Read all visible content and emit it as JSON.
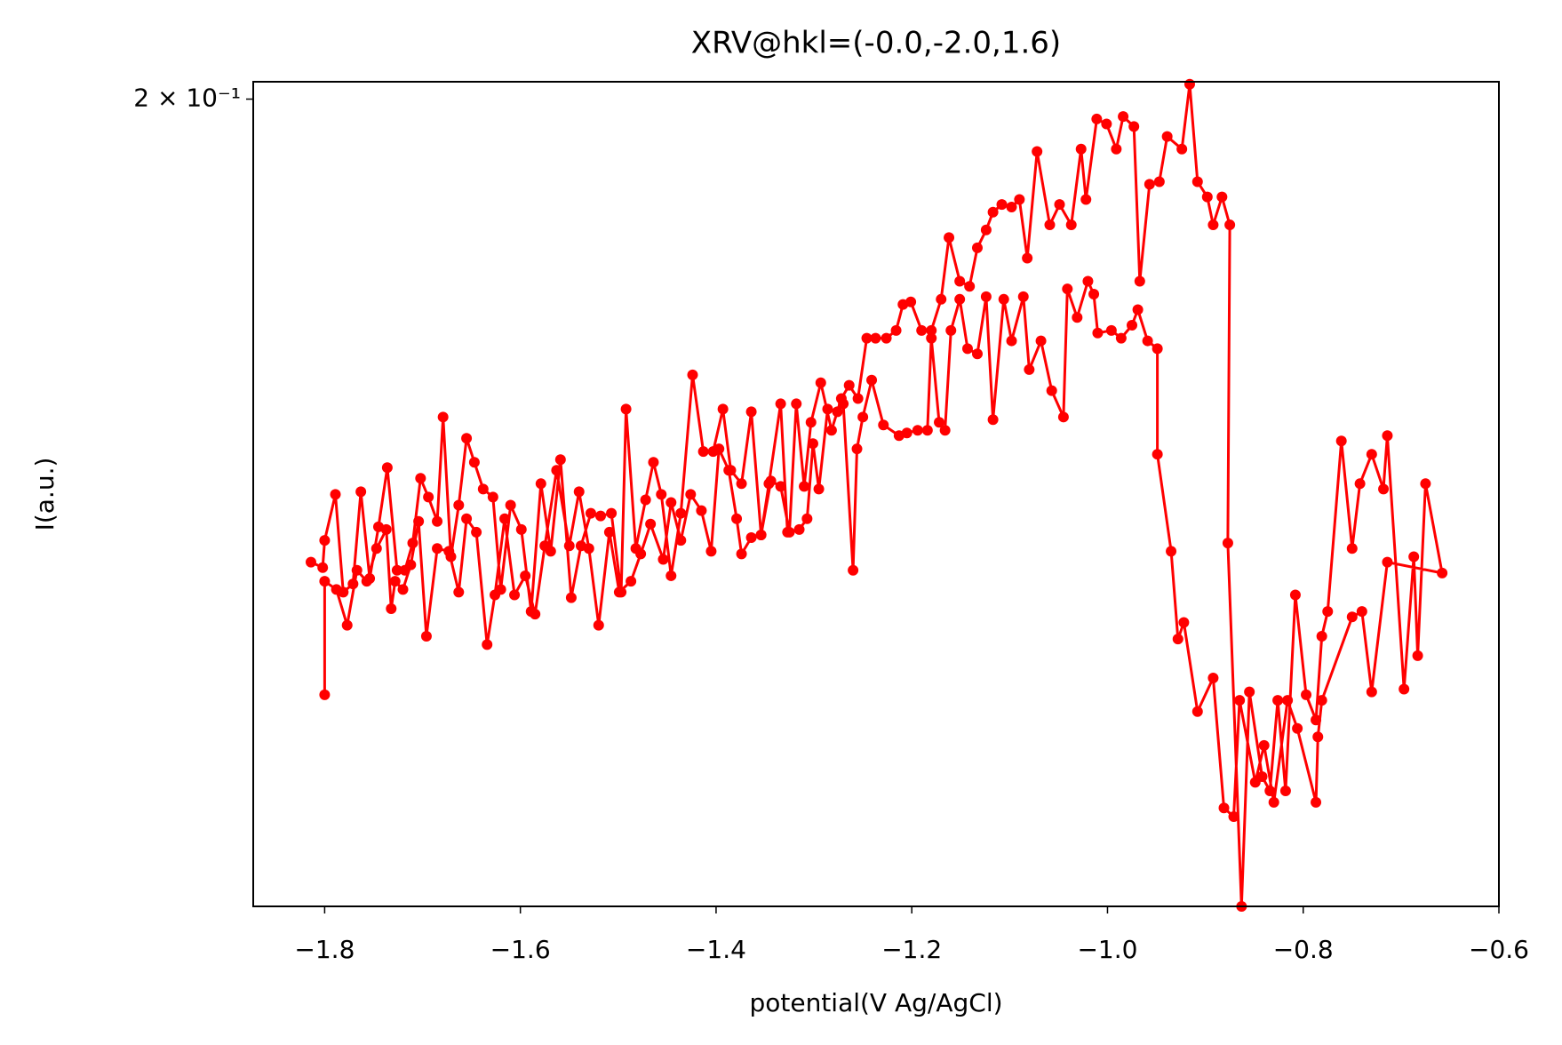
{
  "chart_data": {
    "type": "line",
    "title": "XRV@hkl=(-0.0,-2.0,1.6)",
    "x_label": "potential(V Ag/AgCl)",
    "y_label": "I(a.u.)",
    "x": [
      -1.814,
      -1.802,
      -1.8,
      -1.789,
      -1.781,
      -1.771,
      -1.763,
      -1.754,
      -1.745,
      -1.736,
      -1.726,
      -1.718,
      -1.71,
      -1.702,
      -1.694,
      -1.685,
      -1.679,
      -1.671,
      -1.663,
      -1.655,
      -1.647,
      -1.638,
      -1.628,
      -1.62,
      -1.61,
      -1.599,
      -1.589,
      -1.579,
      -1.569,
      -1.559,
      -1.548,
      -1.538,
      -1.528,
      -1.518,
      -1.507,
      -1.497,
      -1.492,
      -1.482,
      -1.472,
      -1.464,
      -1.456,
      -1.446,
      -1.436,
      -1.424,
      -1.413,
      -1.403,
      -1.393,
      -1.385,
      -1.374,
      -1.364,
      -1.354,
      -1.344,
      -1.334,
      -1.325,
      -1.318,
      -1.31,
      -1.303,
      -1.293,
      -1.282,
      -1.272,
      -1.264,
      -1.255,
      -1.246,
      -1.237,
      -1.226,
      -1.216,
      -1.209,
      -1.201,
      -1.19,
      -1.18,
      -1.17,
      -1.162,
      -1.151,
      -1.141,
      -1.133,
      -1.124,
      -1.117,
      -1.108,
      -1.098,
      -1.09,
      -1.082,
      -1.072,
      -1.059,
      -1.049,
      -1.037,
      -1.027,
      -1.022,
      -1.011,
      -1.001,
      -0.991,
      -0.984,
      -0.973,
      -0.967,
      -0.957,
      -0.947,
      -0.939,
      -0.924,
      -0.916,
      -0.908,
      -0.898,
      -0.892,
      -0.883,
      -0.875,
      -0.877,
      -0.863,
      -0.855,
      -0.842,
      -0.834,
      -0.826,
      -0.818,
      -0.808,
      -0.797,
      -0.787,
      -0.781,
      -0.775,
      -0.761,
      -0.75,
      -0.742,
      -0.73,
      -0.718,
      -0.714,
      -0.697,
      -0.687,
      -0.683,
      -0.675,
      -0.658,
      -0.714,
      -0.73,
      -0.74,
      -0.75,
      -0.781,
      -0.785,
      -0.787,
      -0.806,
      -0.816,
      -0.83,
      -0.84,
      -0.849,
      -0.865,
      -0.871,
      -0.881,
      -0.892,
      -0.908,
      -0.922,
      -0.928,
      -0.935,
      -0.949,
      -0.949,
      -0.959,
      -0.969,
      -0.975,
      -0.986,
      -0.996,
      -1.01,
      -1.014,
      -1.02,
      -1.031,
      -1.041,
      -1.045,
      -1.057,
      -1.068,
      -1.08,
      -1.086,
      -1.098,
      -1.106,
      -1.117,
      -1.124,
      -1.133,
      -1.143,
      -1.151,
      -1.16,
      -1.166,
      -1.172,
      -1.18,
      -1.184,
      -1.194,
      -1.205,
      -1.213,
      -1.229,
      -1.241,
      -1.25,
      -1.256,
      -1.26,
      -1.27,
      -1.276,
      -1.286,
      -1.295,
      -1.301,
      -1.307,
      -1.315,
      -1.327,
      -1.334,
      -1.346,
      -1.354,
      -1.364,
      -1.374,
      -1.379,
      -1.387,
      -1.397,
      -1.405,
      -1.415,
      -1.426,
      -1.436,
      -1.446,
      -1.454,
      -1.467,
      -1.477,
      -1.487,
      -1.499,
      -1.509,
      -1.52,
      -1.53,
      -1.54,
      -1.55,
      -1.563,
      -1.575,
      -1.585,
      -1.595,
      -1.606,
      -1.616,
      -1.626,
      -1.634,
      -1.645,
      -1.655,
      -1.663,
      -1.673,
      -1.685,
      -1.696,
      -1.704,
      -1.712,
      -1.72,
      -1.728,
      -1.732,
      -1.737,
      -1.747,
      -1.757,
      -1.767,
      -1.777,
      -1.788,
      -1.8,
      -1.8
    ],
    "series": [
      {
        "color": "#ff0000",
        "values": [
          0.1822,
          0.182,
          0.183,
          0.1847,
          0.1811,
          0.1814,
          0.1848,
          0.1816,
          0.1835,
          0.1857,
          0.1819,
          0.1819,
          0.1829,
          0.1853,
          0.1846,
          0.1837,
          0.1876,
          0.1824,
          0.1843,
          0.1868,
          0.1859,
          0.1849,
          0.1846,
          0.1812,
          0.1843,
          0.1834,
          0.1804,
          0.1851,
          0.1826,
          0.186,
          0.1809,
          0.1828,
          0.184,
          0.1839,
          0.184,
          0.1811,
          0.1879,
          0.1827,
          0.1845,
          0.1859,
          0.1847,
          0.1817,
          0.184,
          0.1892,
          0.1863,
          0.1863,
          0.1879,
          0.1856,
          0.1851,
          0.1878,
          0.1832,
          0.1852,
          0.185,
          0.1833,
          0.1881,
          0.185,
          0.1874,
          0.1889,
          0.1871,
          0.1883,
          0.1888,
          0.1883,
          0.1906,
          0.1906,
          0.1906,
          0.1909,
          0.1919,
          0.192,
          0.1909,
          0.1909,
          0.1921,
          0.1945,
          0.1928,
          0.1926,
          0.1941,
          0.1948,
          0.1955,
          0.1958,
          0.1957,
          0.196,
          0.1937,
          0.1979,
          0.195,
          0.1958,
          0.195,
          0.198,
          0.196,
          0.1992,
          0.199,
          0.198,
          0.1993,
          0.1989,
          0.1928,
          0.1966,
          0.1967,
          0.1985,
          0.198,
          0.2006,
          0.1967,
          0.1961,
          0.195,
          0.1961,
          0.195,
          0.1829,
          0.17,
          0.1775,
          0.1745,
          0.174,
          0.1772,
          0.174,
          0.181,
          0.1774,
          0.1765,
          0.1795,
          0.1804,
          0.1867,
          0.1827,
          0.1851,
          0.1862,
          0.1849,
          0.1869,
          0.1776,
          0.1824,
          0.1788,
          0.1851,
          0.1818,
          0.1822,
          0.1775,
          0.1804,
          0.1802,
          0.1772,
          0.1759,
          0.1736,
          0.1762,
          0.1772,
          0.1736,
          0.1756,
          0.1743,
          0.1772,
          0.1731,
          0.1734,
          0.178,
          0.1768,
          0.18,
          0.1794,
          0.1826,
          0.1862,
          0.1902,
          0.1905,
          0.1917,
          0.1911,
          0.1906,
          0.1909,
          0.1908,
          0.1923,
          0.1928,
          0.1914,
          0.1925,
          0.1876,
          0.1886,
          0.1905,
          0.1894,
          0.1922,
          0.1905,
          0.1921,
          0.1875,
          0.1922,
          0.19,
          0.1902,
          0.1921,
          0.1909,
          0.1871,
          0.1874,
          0.1906,
          0.1871,
          0.1871,
          0.187,
          0.1869,
          0.1873,
          0.189,
          0.1876,
          0.1864,
          0.1819,
          0.1881,
          0.1878,
          0.1879,
          0.1849,
          0.1866,
          0.1838,
          0.1834,
          0.1833,
          0.1881,
          0.1851,
          0.1832,
          0.1831,
          0.1825,
          0.1838,
          0.1856,
          0.1864,
          0.1826,
          0.1841,
          0.1847,
          0.183,
          0.1844,
          0.1823,
          0.1836,
          0.1825,
          0.1815,
          0.1811,
          0.1833,
          0.1799,
          0.1827,
          0.1848,
          0.1828,
          0.1856,
          0.1828,
          0.1803,
          0.1817,
          0.181,
          0.1838,
          0.181,
          0.1792,
          0.1833,
          0.1838,
          0.1811,
          0.1826,
          0.1827,
          0.1795,
          0.1837,
          0.1821,
          0.1812,
          0.1815,
          0.1805,
          0.1834,
          0.1827,
          0.1815,
          0.1819,
          0.1799,
          0.1812,
          0.1815,
          0.1774
        ]
      }
    ],
    "xlim": [
      -1.873,
      -0.6
    ],
    "xticks": [
      {
        "value": -1.8,
        "label": "−1.8"
      },
      {
        "value": -1.6,
        "label": "−1.6"
      },
      {
        "value": -1.4,
        "label": "−1.4"
      },
      {
        "value": -1.2,
        "label": "−1.2"
      },
      {
        "value": -1.0,
        "label": "−1.0"
      },
      {
        "value": -0.8,
        "label": "−0.8"
      },
      {
        "value": -0.6,
        "label": "−0.6"
      }
    ],
    "ylim": [
      0.17,
      0.2007
    ],
    "ylog": true,
    "yticks": [
      {
        "value": 0.2,
        "label": "2 × 10⁻¹"
      }
    ]
  }
}
